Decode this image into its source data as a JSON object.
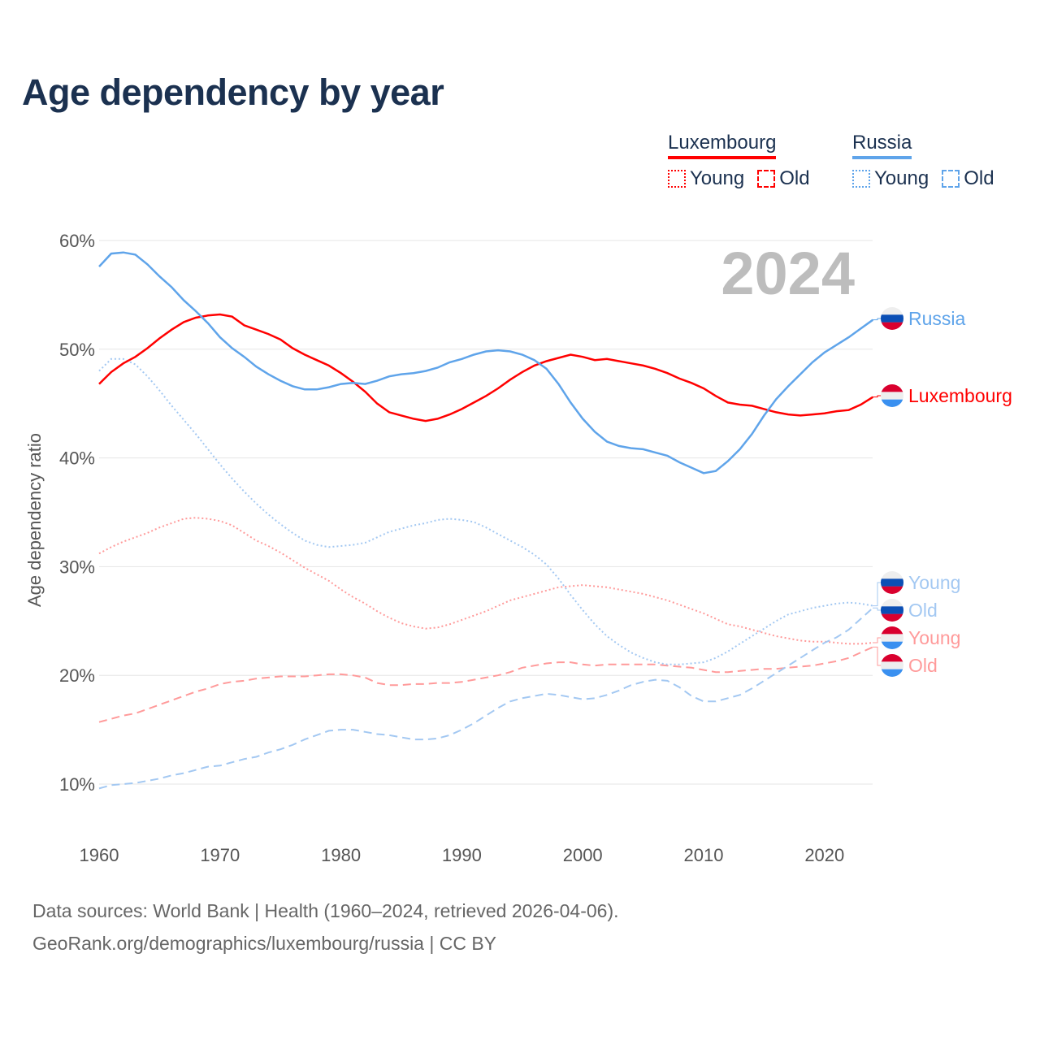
{
  "title": "Age dependency by year",
  "legend": {
    "groups": [
      {
        "name": "Luxembourg",
        "color": "#ff0000",
        "young": "Young",
        "old": "Old"
      },
      {
        "name": "Russia",
        "color": "#5fa4ea",
        "young": "Young",
        "old": "Old"
      }
    ]
  },
  "year_watermark": "2024",
  "end_labels": {
    "russia": "Russia",
    "luxembourg": "Luxembourg",
    "russia_young": "Young",
    "russia_old": "Old",
    "luxembourg_young": "Young",
    "luxembourg_old": "Old"
  },
  "footer": {
    "line1": "Data sources: World Bank | Health (1960–2024, retrieved 2026-04-06).",
    "line2": "GeoRank.org/demographics/luxembourg/russia | CC BY"
  },
  "chart_data": {
    "type": "line",
    "title": "Age dependency by year",
    "xlabel": "",
    "ylabel": "Age dependency ratio",
    "xlim": [
      1960,
      2024
    ],
    "ylim": [
      10,
      60
    ],
    "xticks": [
      "1960",
      "1970",
      "1980",
      "1990",
      "2000",
      "2010",
      "2020"
    ],
    "yticks": [
      "10%",
      "20%",
      "30%",
      "40%",
      "50%",
      "60%"
    ],
    "grid": true,
    "x_start": 1960,
    "series": [
      {
        "name": "Russia",
        "color": "#5fa4ea",
        "dash": "solid",
        "values": [
          57.6,
          58.8,
          58.9,
          58.7,
          57.8,
          56.7,
          55.7,
          54.5,
          53.5,
          52.4,
          51.1,
          50.1,
          49.3,
          48.4,
          47.7,
          47.1,
          46.6,
          46.3,
          46.3,
          46.5,
          46.8,
          46.9,
          46.8,
          47.1,
          47.5,
          47.7,
          47.8,
          48.0,
          48.3,
          48.8,
          49.1,
          49.5,
          49.8,
          49.9,
          49.8,
          49.5,
          49.0,
          48.2,
          46.8,
          45.1,
          43.6,
          42.4,
          41.5,
          41.1,
          40.9,
          40.8,
          40.5,
          40.2,
          39.6,
          39.1,
          38.6,
          38.8,
          39.7,
          40.8,
          42.2,
          43.9,
          45.4,
          46.6,
          47.7,
          48.8,
          49.7,
          50.4,
          51.1,
          51.9,
          52.7
        ]
      },
      {
        "name": "Luxembourg",
        "color": "#ff0000",
        "dash": "solid",
        "values": [
          46.8,
          47.9,
          48.7,
          49.3,
          50.1,
          51.0,
          51.8,
          52.5,
          52.9,
          53.1,
          53.2,
          53.0,
          52.2,
          51.8,
          51.4,
          50.9,
          50.1,
          49.5,
          49.0,
          48.5,
          47.8,
          47.0,
          46.1,
          45.0,
          44.2,
          43.9,
          43.6,
          43.4,
          43.6,
          44.0,
          44.5,
          45.1,
          45.7,
          46.4,
          47.2,
          47.9,
          48.5,
          48.9,
          49.2,
          49.5,
          49.3,
          49.0,
          49.1,
          48.9,
          48.7,
          48.5,
          48.2,
          47.8,
          47.3,
          46.9,
          46.4,
          45.7,
          45.1,
          44.9,
          44.8,
          44.5,
          44.2,
          44.0,
          43.9,
          44.0,
          44.1,
          44.3,
          44.4,
          44.9,
          45.6
        ]
      },
      {
        "name": "Russia Young",
        "color": "#a3c8f2",
        "dash": "dotted",
        "values": [
          48.0,
          49.1,
          49.1,
          48.6,
          47.5,
          46.2,
          44.8,
          43.5,
          42.2,
          40.8,
          39.4,
          38.1,
          36.9,
          35.8,
          34.8,
          33.9,
          33.1,
          32.4,
          32.0,
          31.8,
          31.9,
          32.0,
          32.2,
          32.7,
          33.2,
          33.5,
          33.8,
          34.0,
          34.3,
          34.4,
          34.3,
          34.1,
          33.6,
          33.0,
          32.4,
          31.8,
          31.1,
          30.2,
          28.9,
          27.4,
          26.0,
          24.7,
          23.6,
          22.8,
          22.1,
          21.6,
          21.2,
          21.0,
          21.0,
          21.1,
          21.2,
          21.6,
          22.2,
          22.9,
          23.6,
          24.3,
          25.0,
          25.6,
          25.9,
          26.2,
          26.4,
          26.6,
          26.7,
          26.6,
          26.4
        ]
      },
      {
        "name": "Russia Old",
        "color": "#a3c8f2",
        "dash": "dashed",
        "values": [
          9.6,
          9.9,
          10.0,
          10.1,
          10.3,
          10.5,
          10.8,
          11.0,
          11.3,
          11.6,
          11.7,
          12.0,
          12.3,
          12.5,
          12.9,
          13.2,
          13.6,
          14.1,
          14.5,
          14.9,
          15.0,
          15.0,
          14.8,
          14.6,
          14.5,
          14.3,
          14.1,
          14.1,
          14.2,
          14.5,
          15.0,
          15.6,
          16.3,
          17.0,
          17.6,
          17.9,
          18.1,
          18.3,
          18.2,
          18.0,
          17.8,
          17.9,
          18.2,
          18.6,
          19.1,
          19.4,
          19.6,
          19.5,
          18.9,
          18.1,
          17.6,
          17.6,
          17.9,
          18.2,
          18.8,
          19.5,
          20.2,
          20.9,
          21.6,
          22.3,
          23.0,
          23.5,
          24.2,
          25.2,
          26.2
        ]
      },
      {
        "name": "Luxembourg Young",
        "color": "#ff9a9a",
        "dash": "dotted",
        "values": [
          31.2,
          31.8,
          32.3,
          32.7,
          33.1,
          33.6,
          34.0,
          34.4,
          34.5,
          34.4,
          34.2,
          33.8,
          33.1,
          32.4,
          31.9,
          31.3,
          30.6,
          29.9,
          29.3,
          28.7,
          27.9,
          27.2,
          26.6,
          25.9,
          25.3,
          24.8,
          24.5,
          24.3,
          24.4,
          24.7,
          25.1,
          25.5,
          25.9,
          26.4,
          26.9,
          27.2,
          27.5,
          27.8,
          28.1,
          28.2,
          28.3,
          28.2,
          28.1,
          27.9,
          27.7,
          27.5,
          27.2,
          26.9,
          26.5,
          26.1,
          25.7,
          25.2,
          24.7,
          24.5,
          24.2,
          23.9,
          23.6,
          23.4,
          23.2,
          23.1,
          23.1,
          23.0,
          22.9,
          22.9,
          23.0
        ]
      },
      {
        "name": "Luxembourg Old",
        "color": "#ff9a9a",
        "dash": "dashed",
        "values": [
          15.7,
          16.0,
          16.3,
          16.5,
          16.9,
          17.3,
          17.7,
          18.1,
          18.5,
          18.8,
          19.2,
          19.4,
          19.5,
          19.7,
          19.8,
          19.9,
          19.9,
          19.9,
          20.0,
          20.1,
          20.1,
          20.0,
          19.8,
          19.3,
          19.1,
          19.1,
          19.2,
          19.2,
          19.3,
          19.3,
          19.4,
          19.6,
          19.8,
          20.0,
          20.3,
          20.7,
          20.9,
          21.1,
          21.2,
          21.2,
          21.0,
          20.9,
          21.0,
          21.0,
          21.0,
          21.0,
          21.0,
          20.9,
          20.8,
          20.7,
          20.5,
          20.3,
          20.3,
          20.4,
          20.5,
          20.6,
          20.6,
          20.7,
          20.8,
          20.9,
          21.1,
          21.3,
          21.6,
          22.1,
          22.6
        ]
      }
    ]
  }
}
